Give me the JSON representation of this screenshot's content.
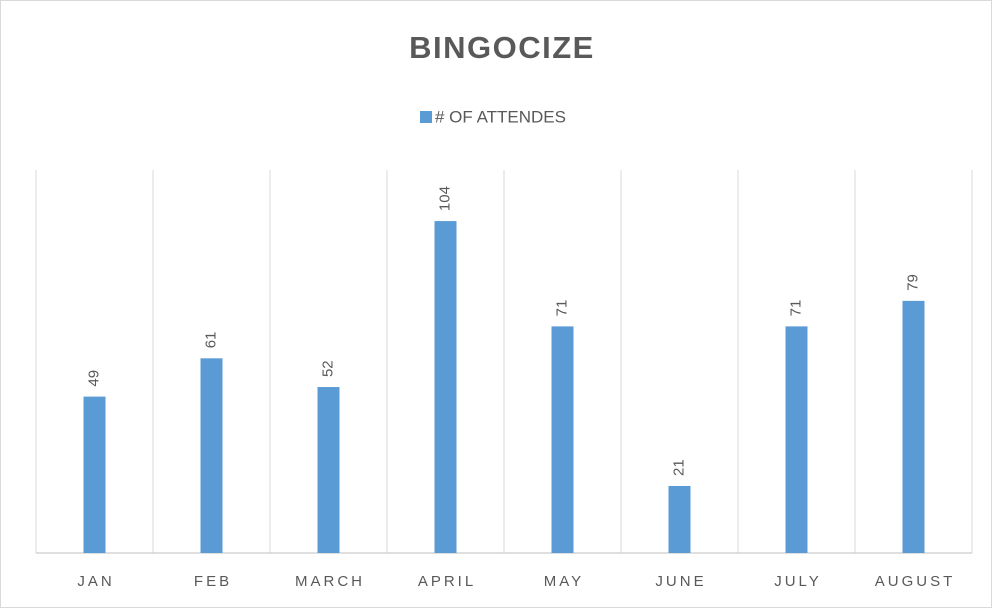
{
  "chart_data": {
    "type": "bar",
    "title": "BINGOCIZE",
    "categories": [
      "JAN",
      "FEB",
      "MARCH",
      "APRIL",
      "MAY",
      "JUNE",
      "JULY",
      "AUGUST"
    ],
    "series": [
      {
        "name": "# OF ATTENDES",
        "color": "#5b9bd5",
        "values": [
          49,
          61,
          52,
          104,
          71,
          21,
          71,
          79
        ]
      }
    ],
    "ylim": [
      0,
      120
    ],
    "grid": true,
    "legend": "top"
  }
}
